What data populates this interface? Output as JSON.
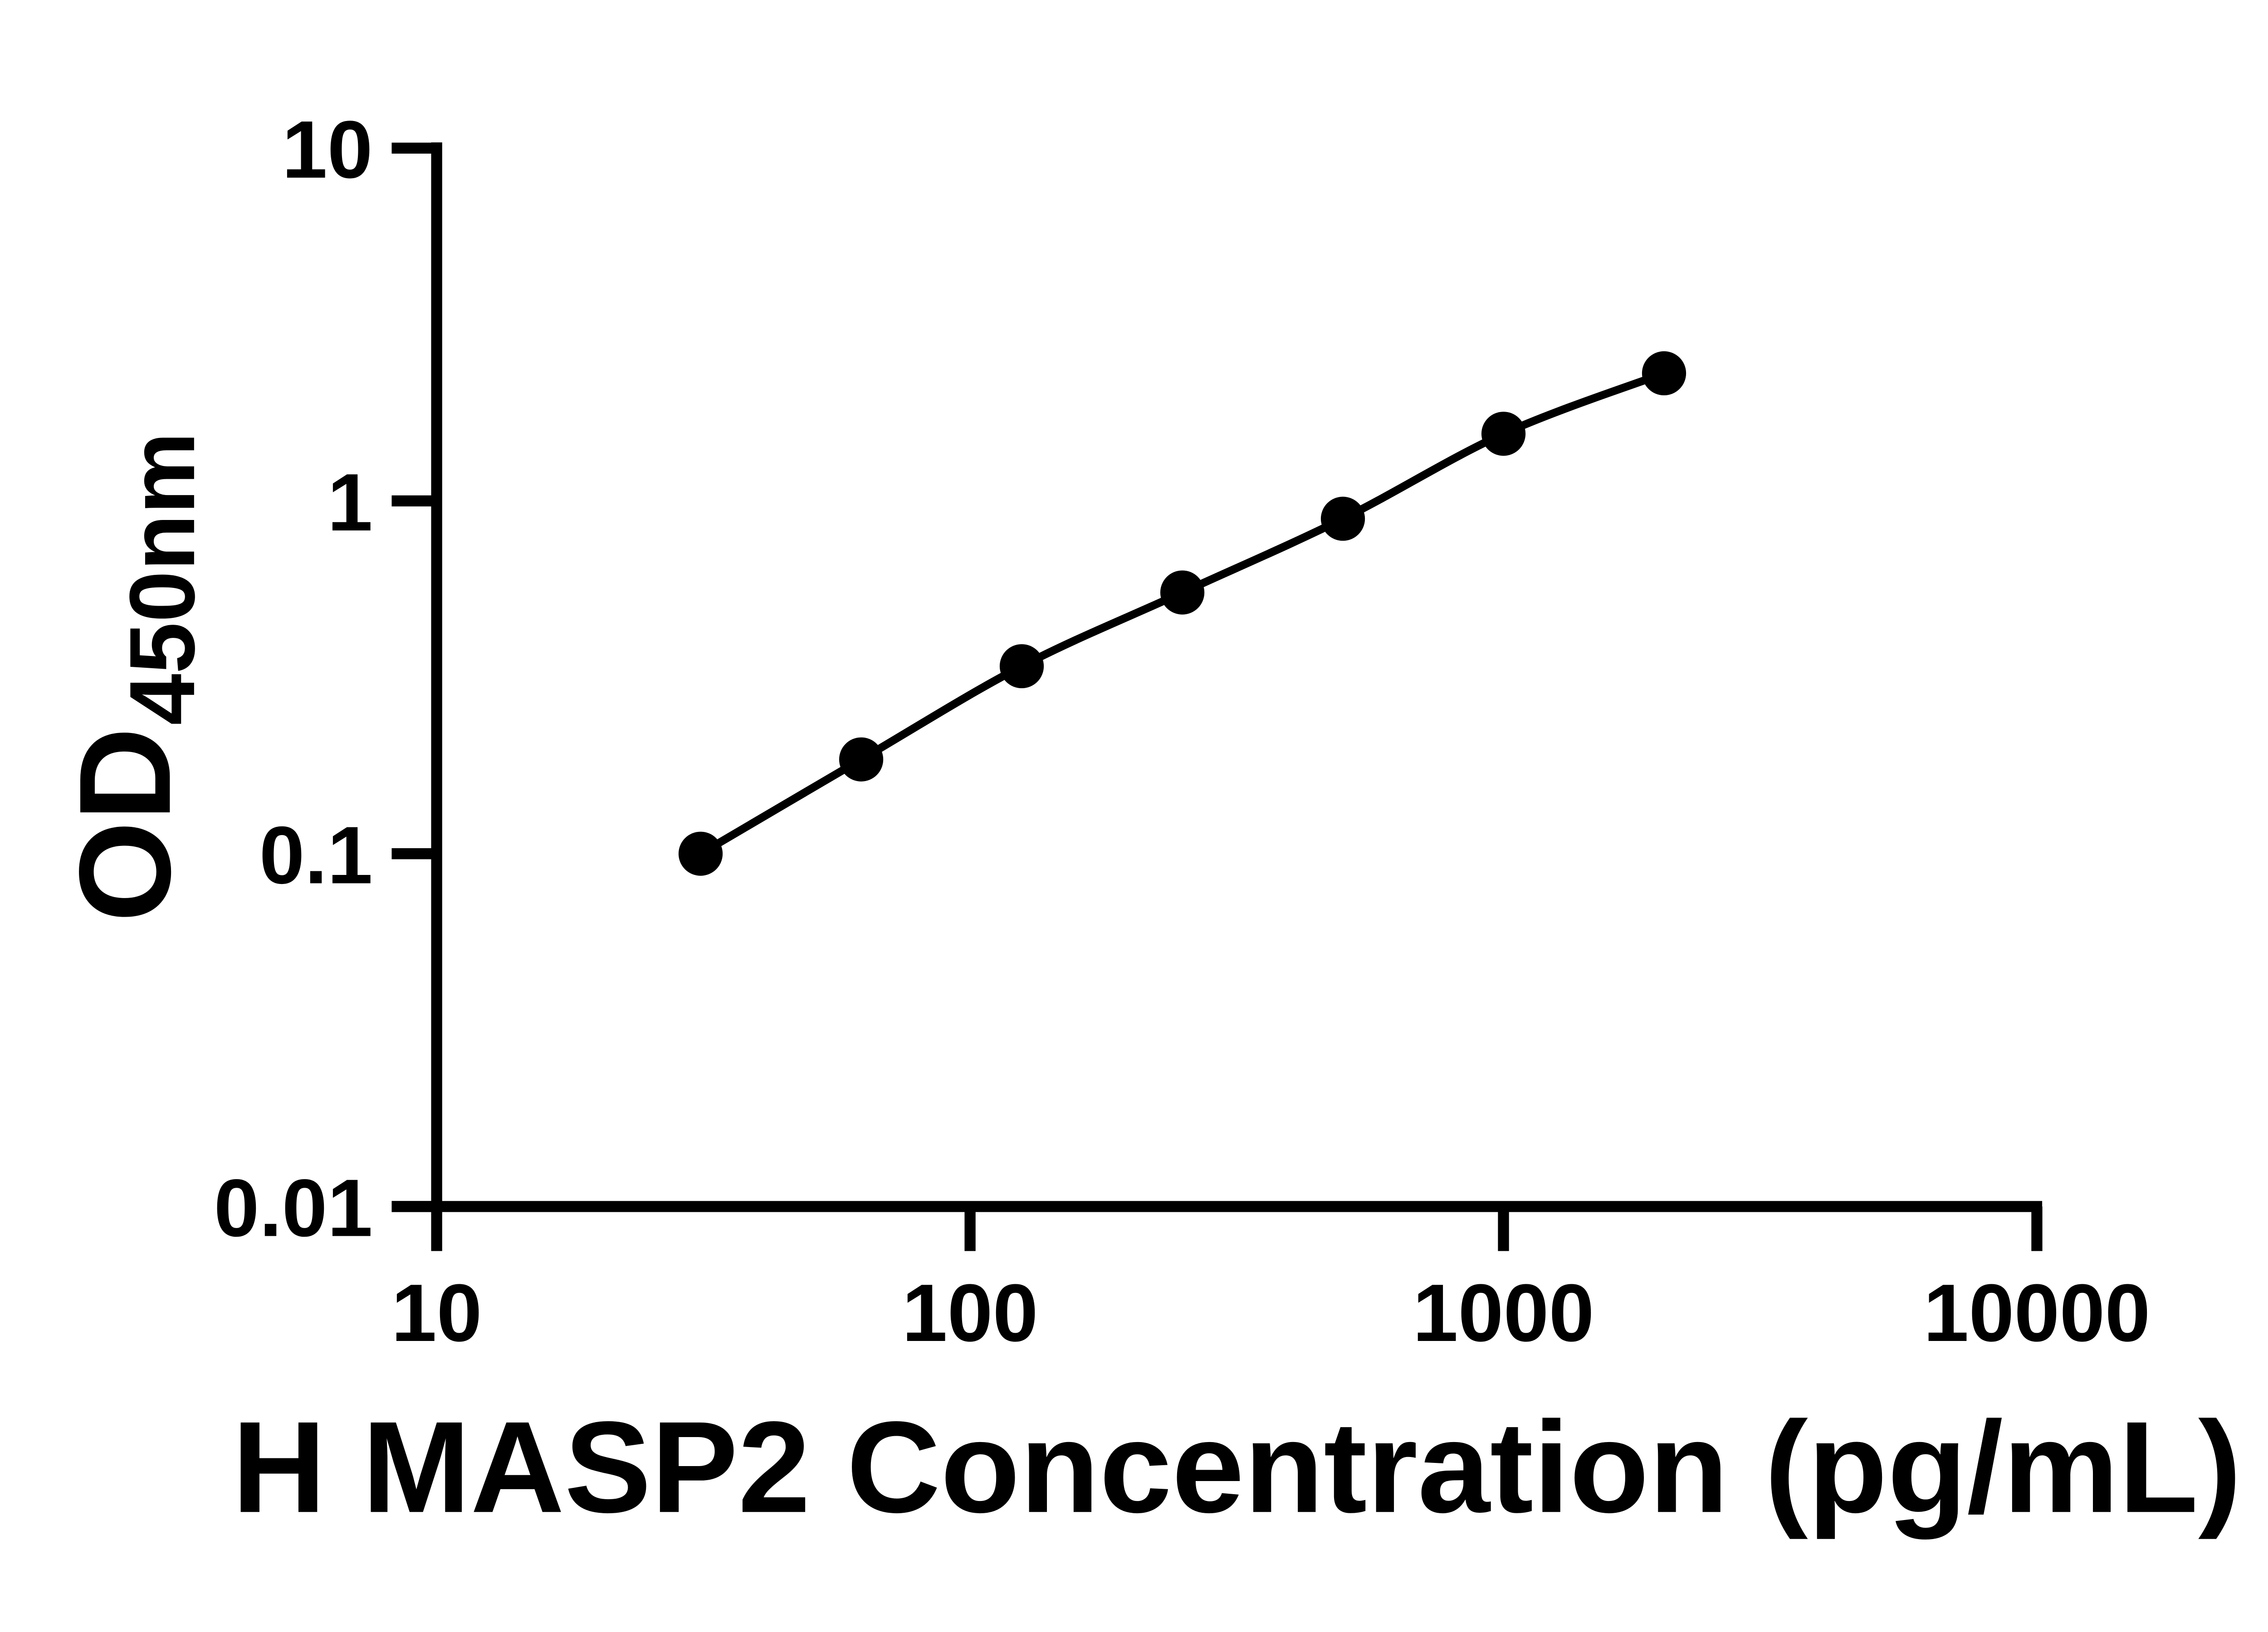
{
  "figure": {
    "background": "#ffffff",
    "foreground": "#000000"
  },
  "chart_data": {
    "type": "line",
    "title": "",
    "xlabel": "H MASP2 Concentration (pg/mL)",
    "ylabel_main": "OD",
    "ylabel_sub": "450nm",
    "x_scale": "log10",
    "y_scale": "log10",
    "xlim": [
      10,
      10000
    ],
    "ylim": [
      0.01,
      10
    ],
    "x_ticks": [
      10,
      100,
      1000,
      10000
    ],
    "x_tick_labels": [
      "10",
      "100",
      "1000",
      "10000"
    ],
    "y_ticks": [
      0.01,
      0.1,
      1,
      10
    ],
    "y_tick_labels": [
      "0.01",
      "0.1",
      "1",
      "10"
    ],
    "grid": false,
    "legend": null,
    "series": [
      {
        "marker": "filled-circle",
        "color": "#000000",
        "x": [
          31.25,
          62.5,
          125,
          250,
          500,
          1000,
          2000
        ],
        "y": [
          0.1,
          0.185,
          0.34,
          0.55,
          0.89,
          1.55,
          2.3
        ]
      }
    ]
  }
}
